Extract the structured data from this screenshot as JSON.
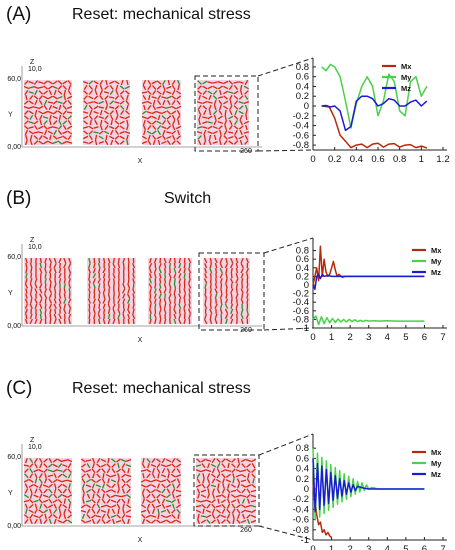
{
  "panels": [
    {
      "letter": "(A)",
      "title": "Reset: mechanical stress",
      "spatial": {
        "z_label": "Z",
        "z_top": "10,0",
        "y_label": "Y",
        "y_top": "60,0",
        "origin": "0,00",
        "x_label": "X",
        "x_end": "260",
        "block_count": 4
      },
      "chart_data": {
        "type": "line",
        "x_ticks": [
          "0",
          "0.2",
          "0.4",
          "0.6",
          "0.8",
          "1",
          "1.2"
        ],
        "y_ticks": [
          "0.8",
          "0.6",
          "0.4",
          "0.2",
          "0",
          "-0.2",
          "-0.4",
          "-0.6",
          "-0.8"
        ],
        "xlim": [
          0,
          1.2
        ],
        "ylim": [
          -0.9,
          0.9
        ],
        "series": [
          {
            "name": "Mx",
            "color": "#b52a0b",
            "x": [
              0.08,
              0.15,
              0.2,
              0.25,
              0.3,
              0.35,
              0.4,
              0.45,
              0.5,
              0.55,
              0.6,
              0.65,
              0.7,
              0.75,
              0.8,
              0.85,
              0.9,
              0.95,
              1.0,
              1.05
            ],
            "values": [
              0.0,
              -0.02,
              -0.25,
              -0.6,
              -0.72,
              -0.85,
              -0.8,
              -0.78,
              -0.85,
              -0.78,
              -0.76,
              -0.84,
              -0.78,
              -0.77,
              -0.84,
              -0.8,
              -0.79,
              -0.85,
              -0.82,
              -0.86
            ]
          },
          {
            "name": "My",
            "color": "#49d14a",
            "x": [
              0.08,
              0.12,
              0.16,
              0.2,
              0.25,
              0.3,
              0.35,
              0.4,
              0.45,
              0.5,
              0.55,
              0.6,
              0.65,
              0.7,
              0.75,
              0.8,
              0.85,
              0.9,
              0.95,
              1.0,
              1.05
            ],
            "values": [
              0.8,
              0.72,
              0.85,
              0.8,
              0.6,
              0.1,
              -0.45,
              0.05,
              0.4,
              0.6,
              0.4,
              -0.2,
              0.1,
              0.65,
              0.5,
              -0.1,
              -0.2,
              0.5,
              0.6,
              0.2,
              0.4
            ]
          },
          {
            "name": "Mz",
            "color": "#1b1bd6",
            "x": [
              0.08,
              0.12,
              0.16,
              0.2,
              0.25,
              0.3,
              0.35,
              0.4,
              0.45,
              0.5,
              0.55,
              0.6,
              0.65,
              0.7,
              0.75,
              0.8,
              0.85,
              0.9,
              0.95,
              1.0,
              1.05
            ],
            "values": [
              0.0,
              0.01,
              -0.02,
              0.0,
              -0.1,
              -0.5,
              -0.42,
              0.1,
              0.2,
              0.2,
              0.15,
              0.0,
              0.05,
              0.15,
              0.12,
              0.0,
              0.0,
              0.08,
              0.12,
              0.0,
              0.1
            ]
          }
        ]
      }
    },
    {
      "letter": "(B)",
      "title": "Switch",
      "spatial": {
        "z_label": "Z",
        "z_top": "10,0",
        "y_label": "Y",
        "y_top": "60,0",
        "origin": "0,00",
        "x_label": "X",
        "x_end": "260",
        "block_count": 4
      },
      "chart_data": {
        "type": "line",
        "x_ticks": [
          "0",
          "1",
          "2",
          "3",
          "4",
          "5",
          "6",
          "7"
        ],
        "y_ticks": [
          "0.8",
          "0.6",
          "0.4",
          "0.2",
          "0",
          "-0.2",
          "-0.4",
          "-0.6",
          "-0.8",
          "-1"
        ],
        "xlim": [
          0,
          7
        ],
        "ylim": [
          -1.0,
          1.0
        ],
        "series": [
          {
            "name": "Mx",
            "color": "#b52a0b",
            "x": [
              0.0,
              0.1,
              0.2,
              0.3,
              0.4,
              0.5,
              0.6,
              0.7,
              0.8,
              0.9,
              1.0,
              1.1,
              1.2,
              1.3,
              1.4,
              1.5,
              1.6,
              1.7,
              1.8,
              2.0,
              2.5,
              3.0,
              4.0,
              5.0,
              6.0
            ],
            "values": [
              0.0,
              0.2,
              0.4,
              0.1,
              0.9,
              0.2,
              0.6,
              0.3,
              0.2,
              0.25,
              0.4,
              0.55,
              0.35,
              0.2,
              0.25,
              0.2,
              0.18,
              0.2,
              0.2,
              0.2,
              0.2,
              0.2,
              0.2,
              0.2,
              0.2
            ]
          },
          {
            "name": "My",
            "color": "#49d14a",
            "x": [
              0.0,
              0.15,
              0.3,
              0.45,
              0.6,
              0.75,
              0.9,
              1.05,
              1.2,
              1.35,
              1.5,
              1.65,
              1.8,
              1.95,
              2.1,
              2.25,
              2.4,
              2.55,
              2.7,
              2.85,
              3.0,
              3.3,
              3.6,
              4.0,
              4.5,
              5.0,
              5.5,
              6.0
            ],
            "values": [
              -0.8,
              -0.72,
              -0.92,
              -0.74,
              -0.9,
              -0.76,
              -0.88,
              -0.78,
              -0.87,
              -0.79,
              -0.86,
              -0.8,
              -0.86,
              -0.8,
              -0.85,
              -0.81,
              -0.85,
              -0.82,
              -0.85,
              -0.82,
              -0.84,
              -0.83,
              -0.84,
              -0.83,
              -0.84,
              -0.84,
              -0.84,
              -0.84
            ]
          },
          {
            "name": "Mz",
            "color": "#1b1bd6",
            "x": [
              0.0,
              0.1,
              0.2,
              0.3,
              0.4,
              0.5,
              0.6,
              0.8,
              1.0,
              1.5,
              2.0,
              3.0,
              4.0,
              5.0,
              6.0
            ],
            "values": [
              0.0,
              -0.1,
              0.2,
              0.25,
              0.15,
              0.25,
              0.2,
              0.22,
              0.2,
              0.2,
              0.2,
              0.2,
              0.2,
              0.2,
              0.2
            ]
          }
        ]
      }
    },
    {
      "letter": "(C)",
      "title": "Reset: mechanical stress",
      "spatial": {
        "z_label": "Z",
        "z_top": "10,0",
        "y_label": "Y",
        "y_top": "60,0",
        "origin": "0,00",
        "x_label": "X",
        "x_end": "260",
        "block_count": 4
      },
      "chart_data": {
        "type": "line",
        "x_ticks": [
          "0",
          "1",
          "2",
          "3",
          "4",
          "5",
          "6",
          "7"
        ],
        "y_ticks": [
          "0.8",
          "0.6",
          "0.4",
          "0.2",
          "0",
          "-0.2",
          "-0.4",
          "-0.6",
          "-0.8",
          "-1"
        ],
        "xlim": [
          0,
          7
        ],
        "ylim": [
          -1.0,
          1.0
        ],
        "series": [
          {
            "name": "Mx",
            "color": "#b52a0b",
            "x": [
              0.0,
              0.1,
              0.2,
              0.3,
              0.4,
              0.5,
              0.6,
              0.7,
              0.8,
              0.9,
              1.0
            ],
            "values": [
              0.1,
              -0.2,
              -0.5,
              -0.7,
              -0.65,
              -0.85,
              -0.8,
              -0.9,
              -0.85,
              -0.92,
              -0.95
            ]
          },
          {
            "name": "My",
            "color": "#49d14a",
            "x": [
              0.0,
              0.12,
              0.24,
              0.36,
              0.48,
              0.6,
              0.72,
              0.84,
              0.96,
              1.08,
              1.2,
              1.32,
              1.44,
              1.56,
              1.68,
              1.8,
              1.92,
              2.04,
              2.16,
              2.28,
              2.4,
              2.52,
              2.64,
              2.76,
              2.88,
              3.0,
              3.2,
              3.5,
              4.0,
              5.0,
              6.0
            ],
            "values": [
              0.8,
              -0.6,
              0.7,
              -0.55,
              0.62,
              -0.48,
              0.55,
              -0.42,
              0.48,
              -0.36,
              0.42,
              -0.3,
              0.36,
              -0.25,
              0.3,
              -0.2,
              0.25,
              -0.15,
              0.2,
              -0.1,
              0.15,
              -0.06,
              0.12,
              -0.03,
              0.08,
              0.0,
              0.03,
              0.0,
              0.0,
              0.0,
              0.0
            ]
          },
          {
            "name": "Mz",
            "color": "#1b1bd6",
            "x": [
              0.0,
              0.12,
              0.24,
              0.36,
              0.48,
              0.6,
              0.72,
              0.84,
              0.96,
              1.08,
              1.2,
              1.32,
              1.44,
              1.56,
              1.68,
              1.8,
              1.92,
              2.04,
              2.16,
              2.28,
              2.4,
              2.7,
              3.0,
              3.5,
              4.0,
              5.0,
              6.0
            ],
            "values": [
              0.6,
              -0.45,
              0.5,
              -0.4,
              0.45,
              -0.32,
              0.38,
              -0.28,
              0.32,
              -0.22,
              0.26,
              -0.18,
              0.2,
              -0.14,
              0.16,
              -0.1,
              0.12,
              -0.06,
              0.08,
              -0.03,
              0.05,
              0.02,
              0.0,
              0.0,
              0.0,
              0.0,
              0.0
            ]
          }
        ]
      }
    }
  ]
}
